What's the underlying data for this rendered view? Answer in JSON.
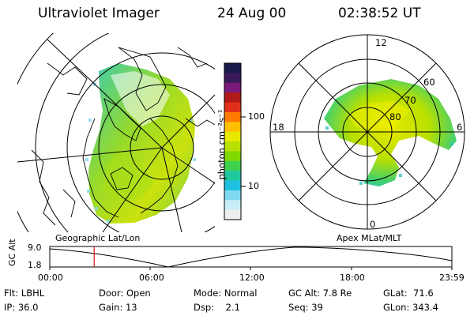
{
  "header": {
    "instrument": "Ultraviolet Imager",
    "date": "24 Aug 00",
    "time": "02:38:52 UT"
  },
  "left_panel": {
    "caption": "Geographic Lat/Lon"
  },
  "colorbar": {
    "unit_label": "photon cm⁻²s⁻¹",
    "ticks": [
      "100",
      "10"
    ],
    "colors": [
      "#1a1a4a",
      "#3a1a5a",
      "#7a1a7a",
      "#b01a1a",
      "#e0301a",
      "#ff7a00",
      "#ffc000",
      "#e8e800",
      "#b8e000",
      "#80d800",
      "#40d050",
      "#20c8a0",
      "#20c0e0",
      "#80d8f0",
      "#c8ecf8",
      "#eeeeee"
    ]
  },
  "right_panel": {
    "caption": "Apex MLat/MLT",
    "mlt_labels": [
      "12",
      "18",
      "6",
      "0"
    ],
    "lat_labels": [
      "60",
      "70",
      "80"
    ]
  },
  "timeline": {
    "y_axis_title": "GC Alt",
    "y_top": "9.0",
    "y_bottom": "1.8",
    "x_ticks": [
      "00:00",
      "06:00",
      "12:00",
      "18:00",
      "23:59"
    ],
    "current_time_marker_hours": 2.65
  },
  "footer": {
    "col1": [
      "Flt: LBHL",
      "IP: 36.0"
    ],
    "col2": [
      "Door: Open",
      "Gain: 13"
    ],
    "col3": [
      "Mode: Normal",
      "Dsp:    2.1"
    ],
    "col4": [
      "GC Alt: 7.8 Re",
      "Seq: 39"
    ],
    "col5": [
      "GLat:  71.6",
      "GLon: 343.4"
    ]
  }
}
